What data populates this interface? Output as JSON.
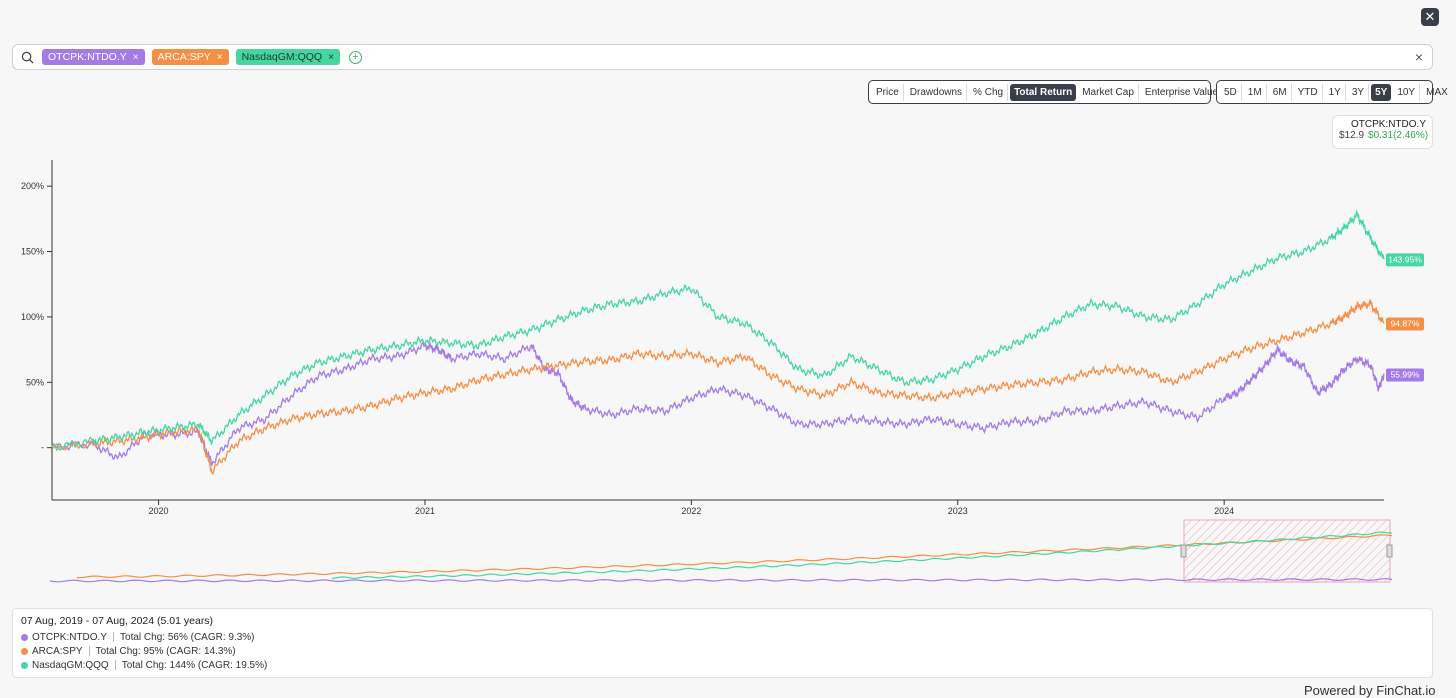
{
  "close_label": "✕",
  "search": {
    "chips": [
      {
        "label": "OTCPK:NTDO.Y",
        "color": "#a47be6"
      },
      {
        "label": "ARCA:SPY",
        "color": "#f58f45"
      },
      {
        "label": "NasdaqGM:QQQ",
        "color": "#45d6a3"
      }
    ],
    "remove_glyph": "×",
    "add_glyph": "+",
    "clear_glyph": "×"
  },
  "metric_options": [
    "Price",
    "Drawdowns",
    "% Chg",
    "Total Return",
    "Market Cap",
    "Enterprise Value"
  ],
  "metric_selected": "Total Return",
  "range_options": [
    "5D",
    "1M",
    "6M",
    "YTD",
    "1Y",
    "3Y",
    "5Y",
    "10Y",
    "MAX"
  ],
  "range_selected": "5Y",
  "quote": {
    "symbol": "OTCPK:NTDO.Y",
    "price": "$12.9",
    "change": "$0.31(2.46%)"
  },
  "chart_data": {
    "type": "line",
    "y_tick_labels": [
      "-",
      "50%",
      "100%",
      "150%",
      "200%"
    ],
    "y_ticks": [
      0,
      50,
      100,
      150,
      200
    ],
    "ylim": [
      -40,
      220
    ],
    "x_ticks": [
      {
        "label": "2020",
        "t": 2020.0
      },
      {
        "label": "2021",
        "t": 2021.0
      },
      {
        "label": "2022",
        "t": 2022.0
      },
      {
        "label": "2023",
        "t": 2023.0
      },
      {
        "label": "2024",
        "t": 2024.0
      }
    ],
    "xlim": [
      2019.6,
      2024.6
    ],
    "series": [
      {
        "name": "OTCPK:NTDO.Y",
        "color": "#a47be6",
        "end_label": "55.99%",
        "t": [
          2019.6,
          2019.75,
          2019.85,
          2019.95,
          2020.05,
          2020.15,
          2020.2,
          2020.3,
          2020.4,
          2020.5,
          2020.6,
          2020.7,
          2020.8,
          2020.9,
          2021.0,
          2021.05,
          2021.1,
          2021.2,
          2021.3,
          2021.4,
          2021.45,
          2021.5,
          2021.55,
          2021.6,
          2021.7,
          2021.8,
          2021.9,
          2022.0,
          2022.1,
          2022.2,
          2022.3,
          2022.4,
          2022.5,
          2022.6,
          2022.7,
          2022.8,
          2022.9,
          2023.0,
          2023.1,
          2023.2,
          2023.3,
          2023.4,
          2023.5,
          2023.6,
          2023.7,
          2023.8,
          2023.9,
          2024.0,
          2024.05,
          2024.1,
          2024.15,
          2024.2,
          2024.25,
          2024.3,
          2024.35,
          2024.4,
          2024.45,
          2024.5,
          2024.55,
          2024.58,
          2024.6
        ],
        "v": [
          0,
          3,
          -8,
          10,
          10,
          12,
          -12,
          15,
          22,
          40,
          55,
          60,
          68,
          70,
          78,
          75,
          68,
          72,
          68,
          78,
          60,
          57,
          36,
          30,
          25,
          30,
          28,
          38,
          45,
          40,
          30,
          18,
          18,
          22,
          20,
          18,
          22,
          18,
          15,
          20,
          20,
          28,
          28,
          32,
          35,
          28,
          23,
          38,
          42,
          52,
          62,
          75,
          66,
          62,
          42,
          48,
          60,
          68,
          63,
          45,
          56
        ]
      },
      {
        "name": "ARCA:SPY",
        "color": "#f58f45",
        "end_label": "94.87%",
        "t": [
          2019.6,
          2019.75,
          2019.85,
          2019.95,
          2020.05,
          2020.15,
          2020.2,
          2020.3,
          2020.4,
          2020.5,
          2020.6,
          2020.7,
          2020.8,
          2020.9,
          2021.0,
          2021.1,
          2021.2,
          2021.3,
          2021.4,
          2021.5,
          2021.6,
          2021.7,
          2021.8,
          2021.9,
          2022.0,
          2022.1,
          2022.2,
          2022.3,
          2022.4,
          2022.5,
          2022.6,
          2022.7,
          2022.8,
          2022.9,
          2023.0,
          2023.1,
          2023.2,
          2023.3,
          2023.4,
          2023.5,
          2023.6,
          2023.7,
          2023.8,
          2023.9,
          2024.0,
          2024.1,
          2024.2,
          2024.3,
          2024.4,
          2024.45,
          2024.5,
          2024.55,
          2024.6
        ],
        "v": [
          0,
          3,
          5,
          8,
          12,
          14,
          -18,
          5,
          15,
          22,
          26,
          28,
          32,
          38,
          42,
          45,
          52,
          56,
          60,
          63,
          66,
          67,
          72,
          70,
          72,
          65,
          70,
          55,
          45,
          40,
          50,
          42,
          40,
          38,
          42,
          45,
          48,
          50,
          52,
          58,
          60,
          58,
          50,
          58,
          68,
          76,
          82,
          88,
          95,
          100,
          108,
          110,
          95
        ]
      },
      {
        "name": "NasdaqGM:QQQ",
        "color": "#45d6a3",
        "end_label": "143.95%",
        "t": [
          2019.6,
          2019.75,
          2019.85,
          2019.95,
          2020.05,
          2020.15,
          2020.2,
          2020.3,
          2020.4,
          2020.5,
          2020.6,
          2020.7,
          2020.8,
          2020.9,
          2021.0,
          2021.1,
          2021.2,
          2021.3,
          2021.4,
          2021.5,
          2021.6,
          2021.7,
          2021.8,
          2021.9,
          2022.0,
          2022.1,
          2022.2,
          2022.3,
          2022.4,
          2022.5,
          2022.6,
          2022.7,
          2022.8,
          2022.9,
          2023.0,
          2023.1,
          2023.2,
          2023.3,
          2023.4,
          2023.5,
          2023.6,
          2023.7,
          2023.8,
          2023.9,
          2024.0,
          2024.1,
          2024.2,
          2024.3,
          2024.4,
          2024.45,
          2024.5,
          2024.55,
          2024.6
        ],
        "v": [
          0,
          5,
          8,
          12,
          15,
          18,
          5,
          25,
          40,
          55,
          65,
          70,
          75,
          78,
          82,
          80,
          78,
          85,
          90,
          98,
          105,
          110,
          112,
          118,
          122,
          100,
          95,
          80,
          60,
          55,
          70,
          60,
          50,
          52,
          60,
          70,
          78,
          88,
          100,
          110,
          108,
          100,
          98,
          110,
          125,
          135,
          145,
          150,
          160,
          168,
          178,
          160,
          144
        ]
      }
    ]
  },
  "legend": {
    "range": "07 Aug, 2019 - 07 Aug, 2024 (5.01 years)",
    "rows": [
      {
        "name": "OTCPK:NTDO.Y",
        "color": "#a47be6",
        "stat": "Total Chg: 56% (CAGR: 9.3%)"
      },
      {
        "name": "ARCA:SPY",
        "color": "#f58f45",
        "stat": "Total Chg: 95% (CAGR: 14.3%)"
      },
      {
        "name": "NasdaqGM:QQQ",
        "color": "#45d6a3",
        "stat": "Total Chg: 144% (CAGR: 19.5%)"
      }
    ]
  },
  "powered_by": "Powered by FinChat.io"
}
